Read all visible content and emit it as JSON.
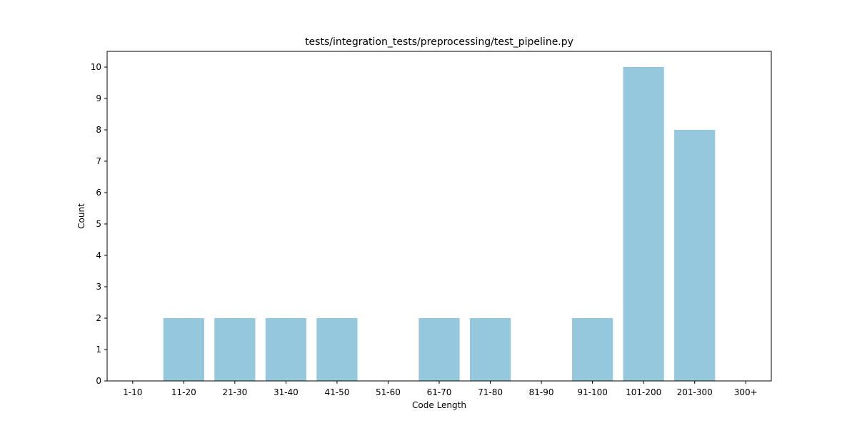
{
  "chart_data": {
    "type": "bar",
    "title": "tests/integration_tests/preprocessing/test_pipeline.py",
    "xlabel": "Code Length",
    "ylabel": "Count",
    "categories": [
      "1-10",
      "11-20",
      "21-30",
      "31-40",
      "41-50",
      "51-60",
      "61-70",
      "71-80",
      "81-90",
      "91-100",
      "101-200",
      "201-300",
      "300+"
    ],
    "values": [
      0,
      2,
      2,
      2,
      2,
      0,
      2,
      2,
      0,
      2,
      10,
      8,
      0
    ],
    "yticks": [
      0,
      1,
      2,
      3,
      4,
      5,
      6,
      7,
      8,
      9,
      10
    ],
    "ylim": [
      0,
      10.5
    ],
    "bar_color": "#95c8dc",
    "grid": false,
    "legend": "none"
  }
}
